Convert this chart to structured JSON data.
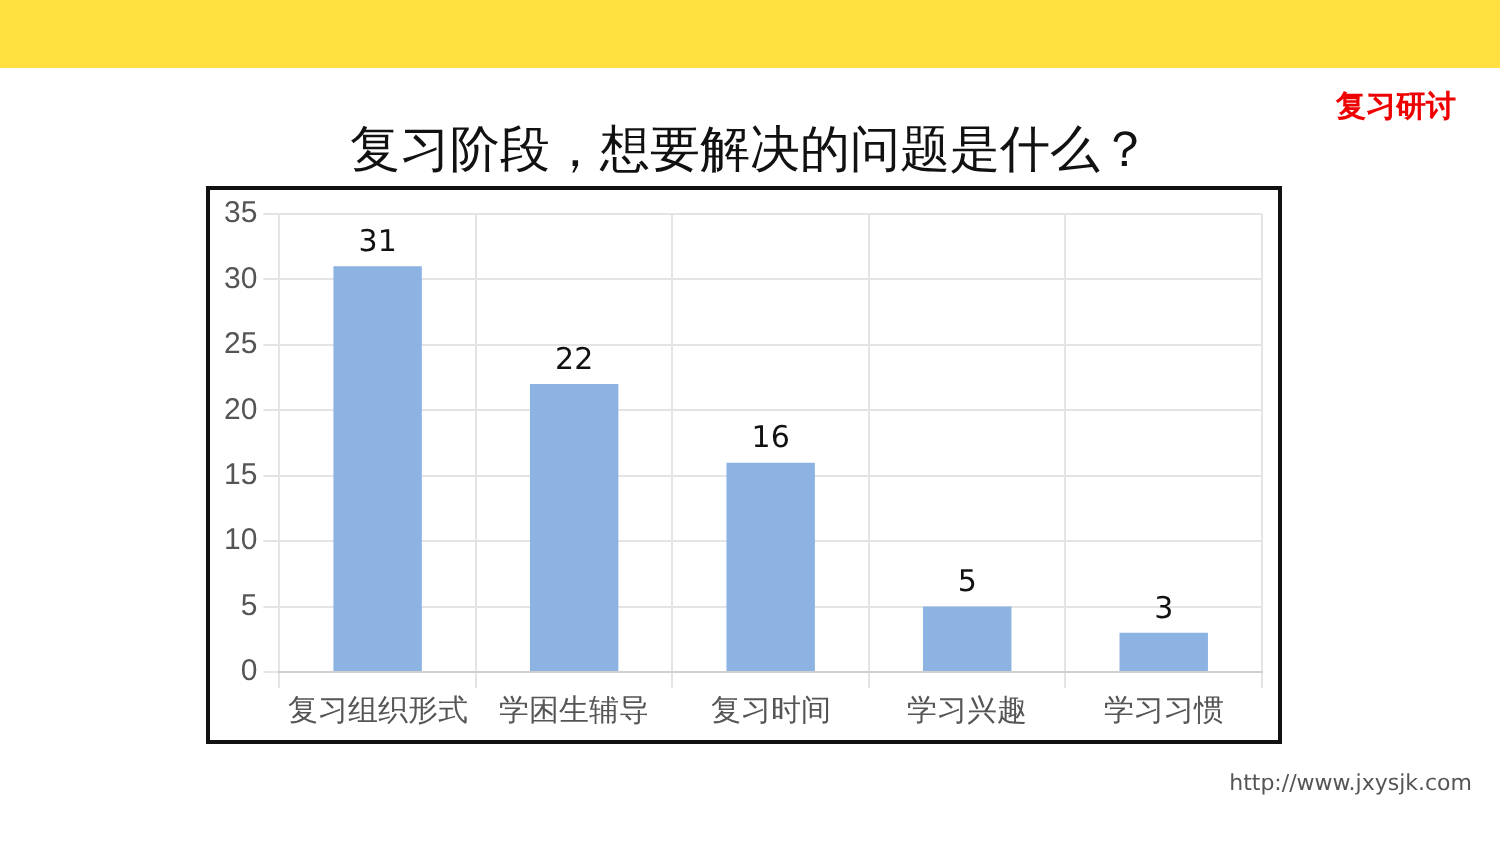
{
  "chart_data": {
    "type": "bar",
    "title": "复习阶段，想要解决的问题是什么？",
    "annotations": [
      "复习研讨",
      "http://www.jxysjk.com"
    ],
    "categories": [
      "复习组织形式",
      "学困生辅导",
      "复习时间",
      "学习兴趣",
      "学习习惯"
    ],
    "values": [
      31,
      22,
      16,
      5,
      3
    ],
    "data_labels": true,
    "color": "#8db3e2",
    "ylim": [
      0,
      35
    ],
    "yticks": [
      0,
      5,
      10,
      15,
      20,
      25,
      30,
      35
    ],
    "grid": true,
    "legend": false
  }
}
